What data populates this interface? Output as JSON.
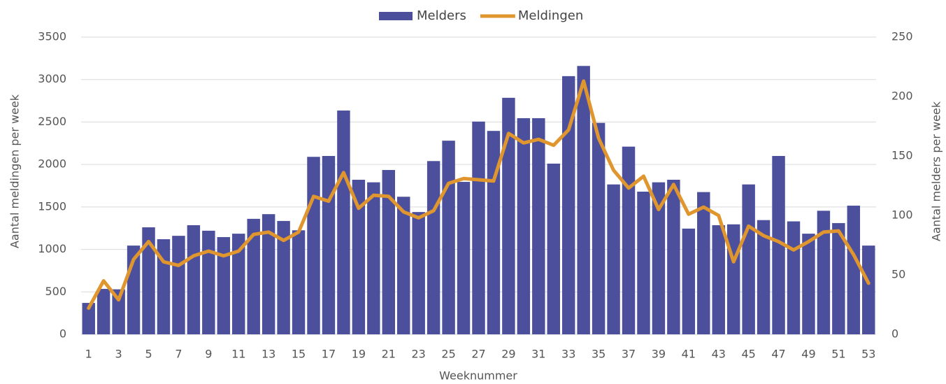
{
  "chart_data": {
    "type": "bar-line",
    "categories": [
      "1",
      null,
      "3",
      null,
      "5",
      null,
      "7",
      null,
      "9",
      null,
      "11",
      null,
      "13",
      null,
      "15",
      null,
      "17",
      null,
      "19",
      null,
      "21",
      null,
      "23",
      null,
      "25",
      null,
      "27",
      null,
      "29",
      null,
      "31",
      null,
      "33",
      null,
      "35",
      null,
      "37",
      null,
      "39",
      null,
      "41",
      null,
      "43",
      null,
      "45",
      null,
      "47",
      null,
      "49",
      null,
      "51",
      null,
      "53"
    ],
    "x_label": "Weeknummer",
    "y_label": "Aantal meldingen per week",
    "y2_label": "Aantal melders per week",
    "ylim": [
      0,
      3500
    ],
    "yticks": [
      0,
      500,
      1000,
      1500,
      2000,
      2500,
      3000,
      3500
    ],
    "y2lim": [
      0,
      250
    ],
    "y2ticks": [
      0,
      50,
      100,
      150,
      200,
      250
    ],
    "grid": true,
    "legend": "top",
    "series": [
      {
        "name": "Melders",
        "type": "bar",
        "color": "#4b4f9c",
        "axis": "y",
        "values": [
          370,
          535,
          530,
          1045,
          1260,
          1120,
          1160,
          1285,
          1220,
          1145,
          1185,
          1360,
          1415,
          1335,
          1225,
          2090,
          2100,
          2635,
          1820,
          1790,
          1935,
          1620,
          1440,
          2040,
          2280,
          1795,
          2505,
          2395,
          2785,
          2545,
          2545,
          2010,
          3040,
          3160,
          2490,
          1765,
          2210,
          1680,
          1790,
          1820,
          1245,
          1675,
          1285,
          1295,
          1765,
          1345,
          2100,
          1330,
          1185,
          1455,
          1310,
          1515,
          1045
        ]
      },
      {
        "name": "Meldingen",
        "type": "line",
        "color": "#e0962e",
        "axis": "y2",
        "values": [
          22,
          45,
          29,
          63,
          78,
          61,
          58,
          66,
          70,
          66,
          70,
          84,
          86,
          79,
          86,
          116,
          112,
          136,
          106,
          117,
          116,
          103,
          98,
          104,
          127,
          131,
          130,
          129,
          169,
          161,
          164,
          159,
          172,
          213,
          165,
          138,
          123,
          133,
          105,
          126,
          101,
          107,
          100,
          61,
          91,
          83,
          78,
          71,
          78,
          86,
          87,
          67,
          43
        ]
      }
    ]
  }
}
